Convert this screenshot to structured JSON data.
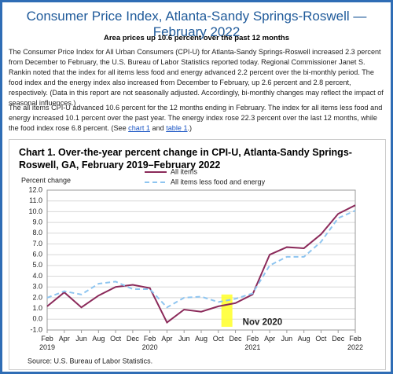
{
  "header": {
    "title": "Consumer Price Index, Atlanta-Sandy Springs-Roswell — February 2022",
    "subtitle": "Area prices up 10.6 percent over the past 12 months"
  },
  "paragraphs": [
    {
      "text": "The Consumer Price Index for All Urban Consumers (CPI-U) for Atlanta-Sandy Springs-Roswell increased 2.3 percent from December to February, the U.S. Bureau of Labor Statistics reported today. Regional Commissioner Janet S. Rankin noted that the index for all items less food and energy advanced 2.2 percent over the bi-monthly period. The food index and the energy index also increased from December to February, up 2.6 percent and 2.8 percent, respectively. (Data in this report are not seasonally adjusted. Accordingly, bi-monthly changes may reflect the impact of seasonal influences.)"
    },
    {
      "segments": [
        "The all items CPI-U advanced 10.6 percent for the 12 months ending in February. The index for all items less food and energy increased 10.1 percent over the past year. The energy index rose 22.3 percent over the last 12 months, while the food index rose 6.8 percent. (See ",
        "chart 1",
        " and ",
        "table 1",
        ".)"
      ]
    }
  ],
  "chart_data": {
    "type": "line",
    "title": "Chart 1. Over-the-year percent change in CPI-U, Atlanta-Sandy Springs-Roswell, GA, February 2019–February 2022",
    "y_label": "Percent change",
    "categories": [
      "Feb 2019",
      "Apr",
      "Jun",
      "Aug",
      "Oct",
      "Dec",
      "Feb 2020",
      "Apr",
      "Jun",
      "Aug",
      "Oct",
      "Dec",
      "Feb 2021",
      "Apr",
      "Jun",
      "Aug",
      "Oct",
      "Dec",
      "Feb 2022"
    ],
    "series": [
      {
        "name": "All items",
        "color": "#8b2a5a",
        "dashed": false,
        "values": [
          1.2,
          2.5,
          1.1,
          2.2,
          3.0,
          3.2,
          2.9,
          -0.3,
          0.9,
          0.7,
          1.2,
          1.5,
          2.3,
          6.0,
          6.7,
          6.6,
          7.9,
          9.8,
          10.6
        ]
      },
      {
        "name": "All items less food and energy",
        "color": "#8ec5f0",
        "dashed": true,
        "values": [
          2.0,
          2.6,
          2.3,
          3.3,
          3.5,
          2.8,
          2.8,
          1.1,
          2.0,
          2.1,
          1.6,
          1.9,
          2.4,
          5.0,
          5.8,
          5.8,
          7.2,
          9.4,
          10.1
        ]
      }
    ],
    "ylim": [
      -1,
      12
    ],
    "yticks": [
      {
        "value": -1,
        "label": "-1.0"
      },
      {
        "value": 0,
        "label": "0.0"
      },
      {
        "value": 1,
        "label": "1.0"
      },
      {
        "value": 2,
        "label": "2.0"
      },
      {
        "value": 3,
        "label": "3.0"
      },
      {
        "value": 4,
        "label": "4.0"
      },
      {
        "value": 5,
        "label": "5.0"
      },
      {
        "value": 6,
        "label": "6.0"
      },
      {
        "value": 7,
        "label": "7.0"
      },
      {
        "value": 8,
        "label": "8.0"
      },
      {
        "value": 9,
        "label": "9.0"
      },
      {
        "value": 10,
        "label": "10.0"
      },
      {
        "value": 11,
        "label": "11.0"
      },
      {
        "value": 12,
        "label": "12.0"
      }
    ],
    "grid": true,
    "annotation": "Nov 2020",
    "source": "Source: U.S. Bureau of Labor Statistics."
  }
}
